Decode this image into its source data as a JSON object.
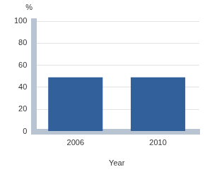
{
  "chart_data": {
    "type": "bar",
    "x_label": "Year",
    "y_label": "%",
    "categories": [
      "2006",
      "2010"
    ],
    "values": [
      49,
      49
    ],
    "color": "#31609b",
    "ylim": [
      0,
      100
    ],
    "yticks": [
      0,
      20,
      40,
      60,
      80,
      100
    ],
    "grid": true
  }
}
